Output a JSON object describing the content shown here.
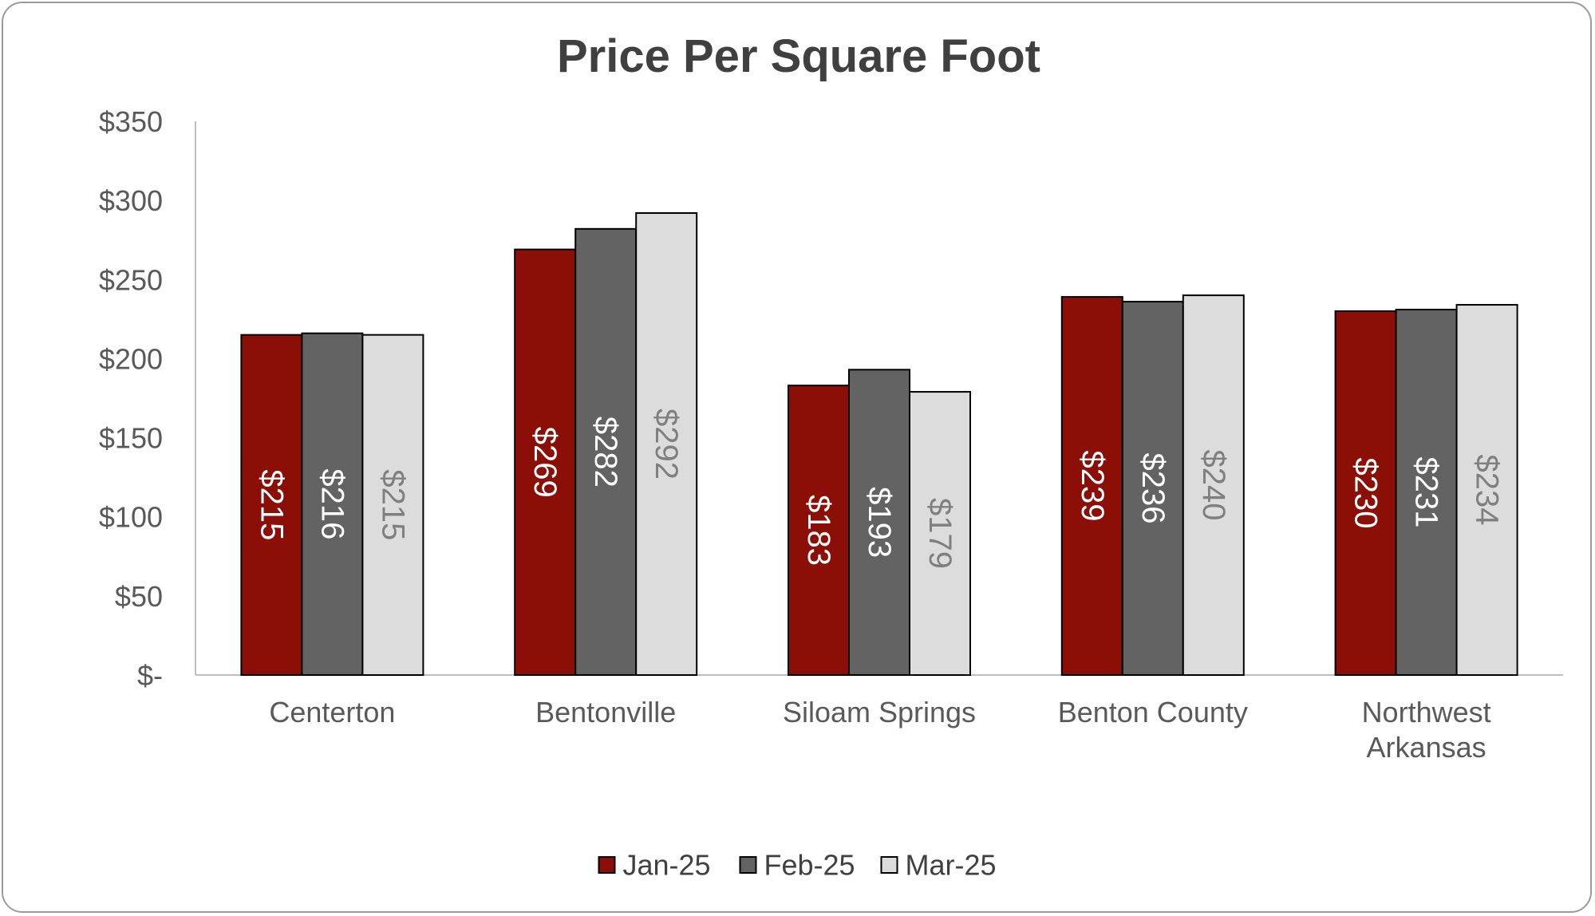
{
  "chart_data": {
    "type": "bar",
    "title": "Price Per Square Foot",
    "xlabel": "",
    "ylabel": "",
    "ylim": [
      0,
      350
    ],
    "yticks": [
      0,
      50,
      100,
      150,
      200,
      250,
      300,
      350
    ],
    "ytick_labels": [
      "$-",
      "$50",
      "$100",
      "$150",
      "$200",
      "$250",
      "$300",
      "$350"
    ],
    "categories": [
      "Centerton",
      "Bentonville",
      "Siloam Springs",
      "Benton County",
      "Northwest Arkansas"
    ],
    "series": [
      {
        "name": "Jan-25",
        "color": "#8b0f07",
        "label_color": "#ffffff",
        "values": [
          215,
          269,
          183,
          239,
          230
        ],
        "labels": [
          "$215",
          "$269",
          "$183",
          "$239",
          "$230"
        ]
      },
      {
        "name": "Feb-25",
        "color": "#636363",
        "label_color": "#ffffff",
        "values": [
          216,
          282,
          193,
          236,
          231
        ],
        "labels": [
          "$216",
          "$282",
          "$193",
          "$236",
          "$231"
        ]
      },
      {
        "name": "Mar-25",
        "color": "#dcdcdc",
        "label_color": "#7f7f7f",
        "values": [
          215,
          292,
          179,
          240,
          234
        ],
        "labels": [
          "$215",
          "$292",
          "$179",
          "$240",
          "$234"
        ]
      }
    ],
    "grid": false,
    "legend_position": "bottom",
    "bar_outline_color": "#000000"
  }
}
